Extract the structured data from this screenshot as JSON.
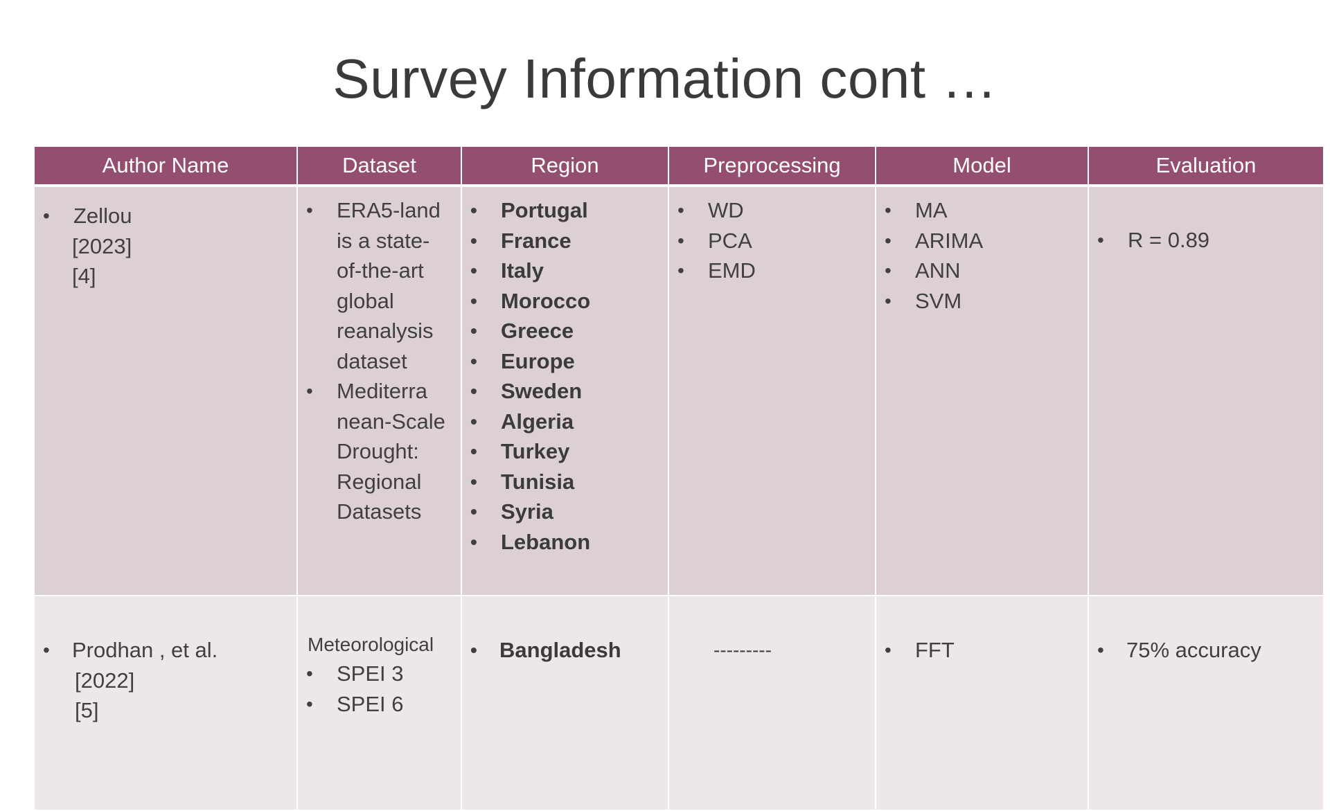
{
  "title": "Survey Information cont …",
  "headers": [
    "Author Name",
    "Dataset",
    "Region",
    "Preprocessing",
    "Model",
    "Evaluation"
  ],
  "rows": [
    {
      "author": [
        "Zellou",
        "[2023]",
        "[4]"
      ],
      "dataset": [
        [
          "ERA5-land",
          "is a state-",
          "of-the-art",
          "global",
          "reanalysis",
          "dataset"
        ],
        [
          "Mediterra",
          "nean-Scale",
          "Drought:",
          "Regional",
          "Datasets"
        ]
      ],
      "region": [
        "Portugal",
        "France",
        "Italy",
        "Morocco",
        "Greece",
        "Europe",
        "Sweden",
        "Algeria",
        "Turkey",
        "Tunisia",
        "Syria",
        "Lebanon"
      ],
      "preprocessing": [
        "WD",
        "PCA",
        "EMD"
      ],
      "model": [
        "MA",
        "ARIMA",
        "ANN",
        "SVM"
      ],
      "evaluation": [
        "R = 0.89"
      ]
    },
    {
      "author": [
        "Prodhan , et al.",
        "[2022]",
        "[5]"
      ],
      "dataset_label": "Meteorological",
      "dataset": [
        "SPEI 3",
        "SPEI 6"
      ],
      "region": [
        "Bangladesh"
      ],
      "preprocessing": "---------",
      "model": [
        "FFT"
      ],
      "evaluation": [
        "75% accuracy"
      ]
    }
  ]
}
